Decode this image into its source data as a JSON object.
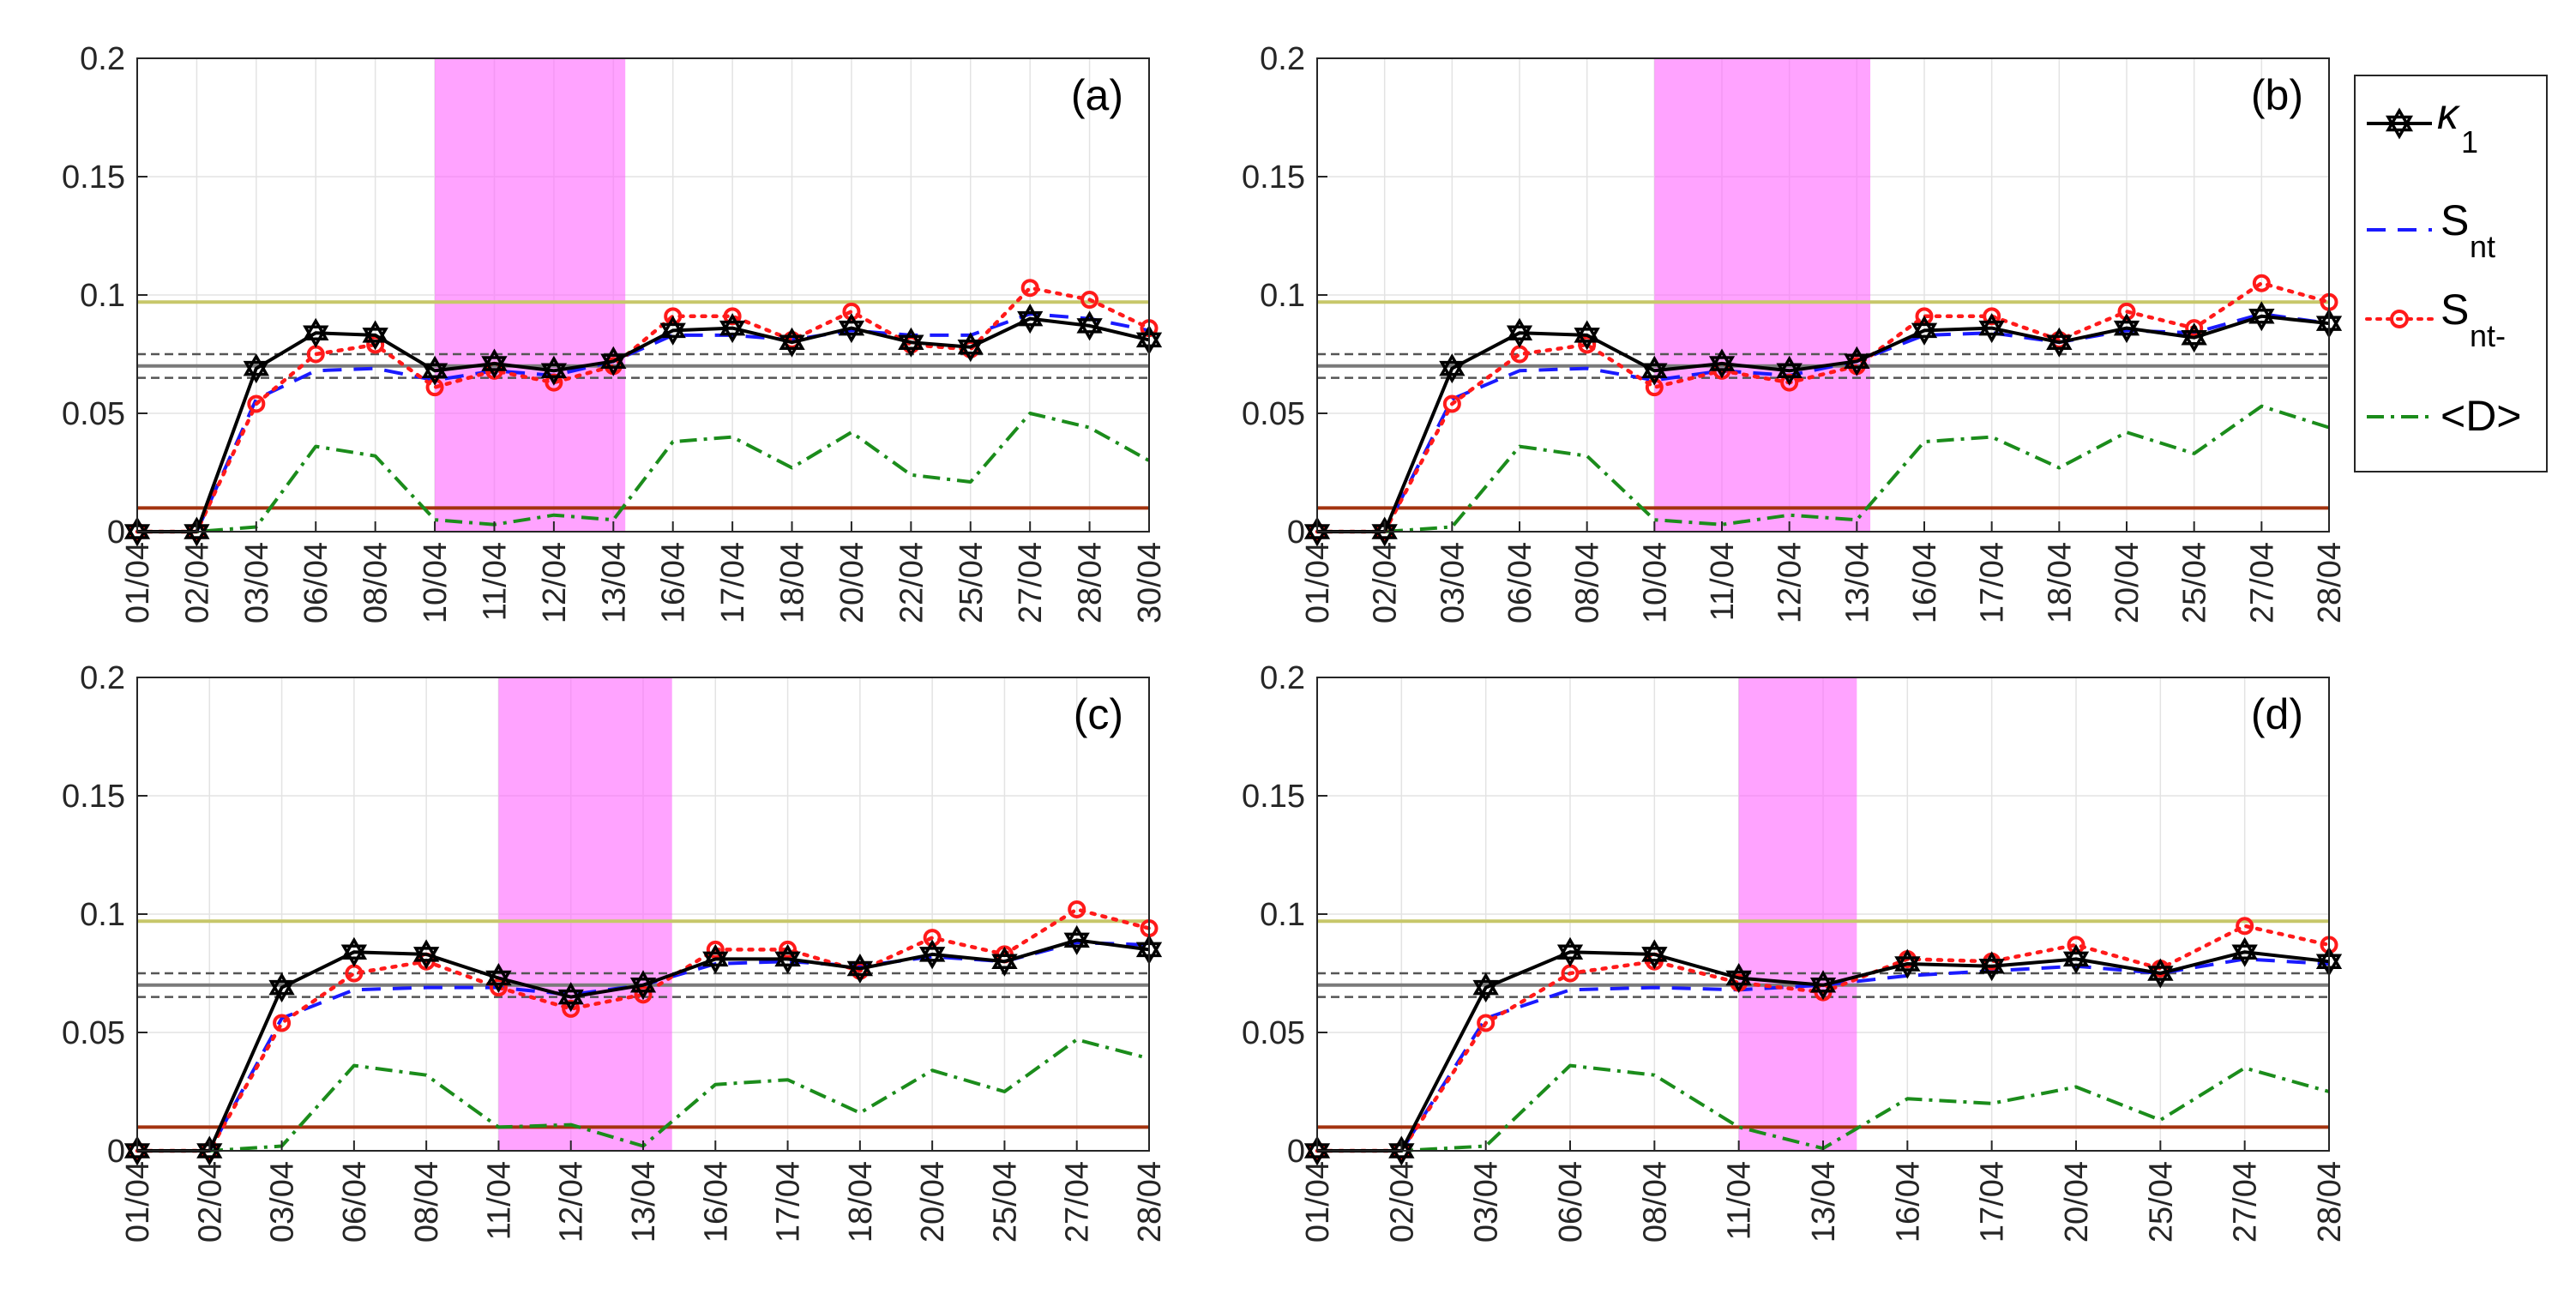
{
  "colors": {
    "kappa": "#000000",
    "snt": "#1a1aff",
    "sntminus": "#ff1a1a",
    "D": "#1b8c1b",
    "shade": "#ff66ff",
    "olive_line": "#c7c76a",
    "brown_line": "#a3330f",
    "gray_line": "#7a7a7a"
  },
  "legend": {
    "kappa_label": "κ",
    "kappa_sub": "1",
    "snt_label": "S",
    "snt_sub": "nt",
    "sntminus_label": "S",
    "sntminus_sub": "nt-",
    "d_label": "<D>"
  },
  "chart_data": [
    {
      "type": "line",
      "panel_label": "(a)",
      "categories": [
        "01/04",
        "02/04",
        "03/04",
        "06/04",
        "08/04",
        "10/04",
        "11/04",
        "12/04",
        "13/04",
        "16/04",
        "17/04",
        "18/04",
        "20/04",
        "22/04",
        "25/04",
        "27/04",
        "28/04",
        "30/04"
      ],
      "ylim": [
        0,
        0.2
      ],
      "yticks": [
        "0",
        "0.05",
        "0.1",
        "0.15",
        "0.2"
      ],
      "shaded_range": [
        5,
        8.2
      ],
      "hlines": {
        "olive": 0.097,
        "brown": 0.01,
        "gray": 0.07,
        "gray_dashed": [
          0.075,
          0.065
        ]
      },
      "series": [
        {
          "name": "κ1",
          "values": [
            0,
            0,
            0.069,
            0.084,
            0.083,
            0.068,
            0.071,
            0.068,
            0.072,
            0.085,
            0.086,
            0.08,
            0.086,
            0.08,
            0.078,
            0.09,
            0.087,
            0.081
          ]
        },
        {
          "name": "Snt",
          "values": [
            0,
            0,
            0.056,
            0.068,
            0.069,
            0.064,
            0.068,
            0.066,
            0.072,
            0.083,
            0.083,
            0.081,
            0.085,
            0.083,
            0.083,
            0.092,
            0.09,
            0.085
          ]
        },
        {
          "name": "Snt-",
          "values": [
            0,
            0,
            0.054,
            0.075,
            0.079,
            0.061,
            0.068,
            0.063,
            0.07,
            0.091,
            0.091,
            0.081,
            0.093,
            0.079,
            0.077,
            0.103,
            0.098,
            0.086
          ]
        },
        {
          "name": "<D>",
          "values": [
            0,
            0,
            0.002,
            0.036,
            0.032,
            0.005,
            0.003,
            0.007,
            0.005,
            0.038,
            0.04,
            0.027,
            0.042,
            0.024,
            0.021,
            0.05,
            0.044,
            0.03
          ]
        }
      ]
    },
    {
      "type": "line",
      "panel_label": "(b)",
      "categories": [
        "01/04",
        "02/04",
        "03/04",
        "06/04",
        "08/04",
        "10/04",
        "11/04",
        "12/04",
        "13/04",
        "16/04",
        "17/04",
        "18/04",
        "20/04",
        "25/04",
        "27/04",
        "28/04"
      ],
      "ylim": [
        0,
        0.2
      ],
      "yticks": [
        "0",
        "0.05",
        "0.1",
        "0.15",
        "0.2"
      ],
      "shaded_range": [
        5,
        8.2
      ],
      "hlines": {
        "olive": 0.097,
        "brown": 0.01,
        "gray": 0.07,
        "gray_dashed": [
          0.075,
          0.065
        ]
      },
      "series": [
        {
          "name": "κ1",
          "values": [
            0,
            0,
            0.069,
            0.084,
            0.083,
            0.068,
            0.071,
            0.068,
            0.072,
            0.085,
            0.086,
            0.08,
            0.086,
            0.082,
            0.091,
            0.088
          ]
        },
        {
          "name": "Snt",
          "values": [
            0,
            0,
            0.056,
            0.068,
            0.069,
            0.064,
            0.068,
            0.066,
            0.072,
            0.083,
            0.084,
            0.08,
            0.085,
            0.084,
            0.092,
            0.088
          ]
        },
        {
          "name": "Snt-",
          "values": [
            0,
            0,
            0.054,
            0.075,
            0.079,
            0.061,
            0.068,
            0.063,
            0.07,
            0.091,
            0.091,
            0.081,
            0.093,
            0.086,
            0.105,
            0.097
          ]
        },
        {
          "name": "<D>",
          "values": [
            0,
            0,
            0.002,
            0.036,
            0.032,
            0.005,
            0.003,
            0.007,
            0.005,
            0.038,
            0.04,
            0.027,
            0.042,
            0.033,
            0.053,
            0.044
          ]
        }
      ]
    },
    {
      "type": "line",
      "panel_label": "(c)",
      "categories": [
        "01/04",
        "02/04",
        "03/04",
        "06/04",
        "08/04",
        "11/04",
        "12/04",
        "13/04",
        "16/04",
        "17/04",
        "18/04",
        "20/04",
        "25/04",
        "27/04",
        "28/04"
      ],
      "ylim": [
        0,
        0.2
      ],
      "yticks": [
        "0",
        "0.05",
        "0.1",
        "0.15",
        "0.2"
      ],
      "shaded_range": [
        5,
        7.4
      ],
      "hlines": {
        "olive": 0.097,
        "brown": 0.01,
        "gray": 0.07,
        "gray_dashed": [
          0.075,
          0.065
        ]
      },
      "series": [
        {
          "name": "κ1",
          "values": [
            0,
            0,
            0.069,
            0.084,
            0.083,
            0.073,
            0.065,
            0.07,
            0.081,
            0.081,
            0.077,
            0.083,
            0.08,
            0.089,
            0.085
          ]
        },
        {
          "name": "Snt",
          "values": [
            0,
            0,
            0.056,
            0.068,
            0.069,
            0.069,
            0.066,
            0.07,
            0.079,
            0.08,
            0.078,
            0.082,
            0.08,
            0.088,
            0.087
          ]
        },
        {
          "name": "Snt-",
          "values": [
            0,
            0,
            0.054,
            0.075,
            0.08,
            0.069,
            0.06,
            0.066,
            0.085,
            0.085,
            0.076,
            0.09,
            0.083,
            0.102,
            0.094
          ]
        },
        {
          "name": "<D>",
          "values": [
            0,
            0,
            0.002,
            0.036,
            0.032,
            0.01,
            0.011,
            0.002,
            0.028,
            0.03,
            0.016,
            0.034,
            0.025,
            0.047,
            0.039
          ]
        }
      ]
    },
    {
      "type": "line",
      "panel_label": "(d)",
      "categories": [
        "01/04",
        "02/04",
        "03/04",
        "06/04",
        "08/04",
        "11/04",
        "13/04",
        "16/04",
        "17/04",
        "20/04",
        "25/04",
        "27/04",
        "28/04"
      ],
      "ylim": [
        0,
        0.2
      ],
      "yticks": [
        "0",
        "0.05",
        "0.1",
        "0.15",
        "0.2"
      ],
      "shaded_range": [
        5,
        6.4
      ],
      "hlines": {
        "olive": 0.097,
        "brown": 0.01,
        "gray": 0.07,
        "gray_dashed": [
          0.075,
          0.065
        ]
      },
      "series": [
        {
          "name": "κ1",
          "values": [
            0,
            0,
            0.069,
            0.084,
            0.083,
            0.073,
            0.07,
            0.079,
            0.078,
            0.081,
            0.075,
            0.084,
            0.08
          ]
        },
        {
          "name": "Snt",
          "values": [
            0,
            0,
            0.056,
            0.068,
            0.069,
            0.068,
            0.07,
            0.074,
            0.076,
            0.078,
            0.075,
            0.081,
            0.079
          ]
        },
        {
          "name": "Snt-",
          "values": [
            0,
            0,
            0.054,
            0.075,
            0.08,
            0.071,
            0.067,
            0.081,
            0.08,
            0.087,
            0.077,
            0.095,
            0.087
          ]
        },
        {
          "name": "<D>",
          "values": [
            0,
            0,
            0.002,
            0.036,
            0.032,
            0.01,
            0.001,
            0.022,
            0.02,
            0.027,
            0.013,
            0.035,
            0.025
          ]
        }
      ]
    }
  ]
}
